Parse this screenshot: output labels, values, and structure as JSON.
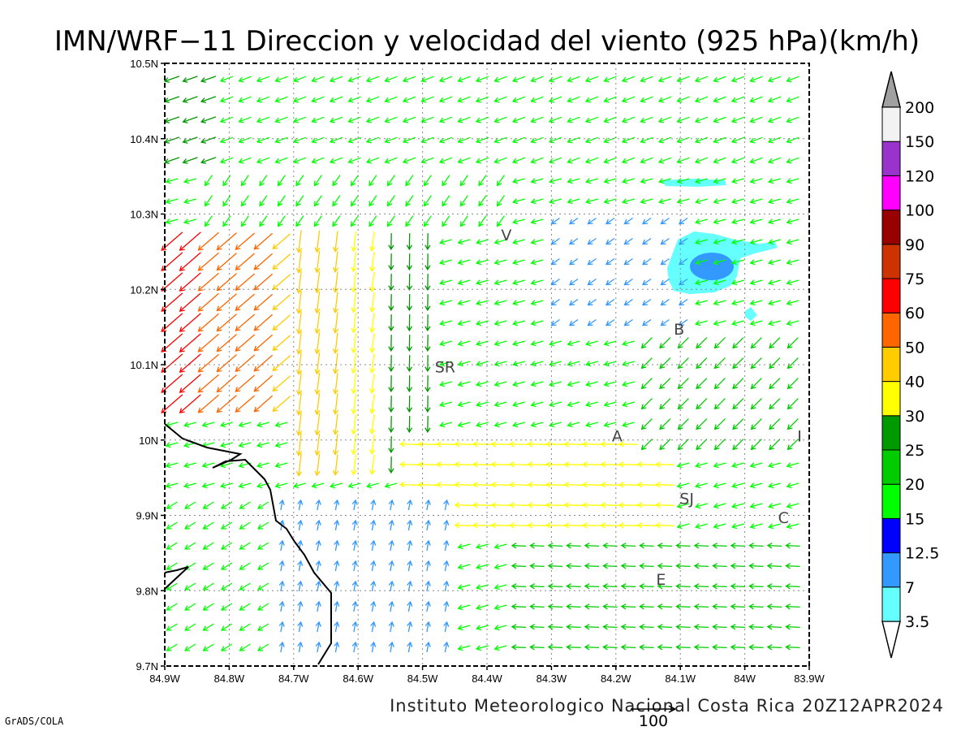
{
  "title": "IMN/WRF−11 Direccion y velocidad del viento (925 hPa)(km/h)",
  "footer": "Instituto Meteorologico Nacional Costa Rica  20Z12APR2024",
  "credit": "GrADS/COLA",
  "reference_vector_label": "100",
  "axes": {
    "x_ticks": [
      "84.9W",
      "84.8W",
      "84.7W",
      "84.6W",
      "84.5W",
      "84.4W",
      "84.3W",
      "84.2W",
      "84.1W",
      "84W",
      "83.9W"
    ],
    "y_ticks": [
      "9.7N",
      "9.8N",
      "9.9N",
      "10N",
      "10.1N",
      "10.2N",
      "10.3N",
      "10.4N",
      "10.5N"
    ],
    "lon_range": [
      -84.9,
      -83.9
    ],
    "lat_range": [
      9.7,
      10.5
    ],
    "grid": true
  },
  "colorbar": {
    "labels": [
      "3.5",
      "7",
      "12.5",
      "15",
      "20",
      "25",
      "30",
      "40",
      "50",
      "60",
      "75",
      "90",
      "100",
      "120",
      "150",
      "200"
    ],
    "colors": [
      "#66ffff",
      "#3399ff",
      "#0000ff",
      "#00ff00",
      "#00cc00",
      "#009900",
      "#ffff00",
      "#ffcc00",
      "#ff6600",
      "#ff0000",
      "#cc3300",
      "#990000",
      "#ff00ff",
      "#9933cc",
      "#f2f2f2"
    ],
    "arrow_top_color": "#a0a0a0",
    "arrow_bottom_color": "#ffffff"
  },
  "cities": [
    {
      "label": "V",
      "lon": -84.37,
      "lat": 10.265
    },
    {
      "label": "B",
      "lon": -84.102,
      "lat": 10.14
    },
    {
      "label": "SR",
      "lon": -84.465,
      "lat": 10.09
    },
    {
      "label": "A",
      "lon": -84.198,
      "lat": 9.998
    },
    {
      "label": "I",
      "lon": -83.915,
      "lat": 9.998
    },
    {
      "label": "SJ",
      "lon": -84.09,
      "lat": 9.915
    },
    {
      "label": "C",
      "lon": -83.94,
      "lat": 9.89
    },
    {
      "label": "E",
      "lon": -84.13,
      "lat": 9.808
    }
  ]
}
